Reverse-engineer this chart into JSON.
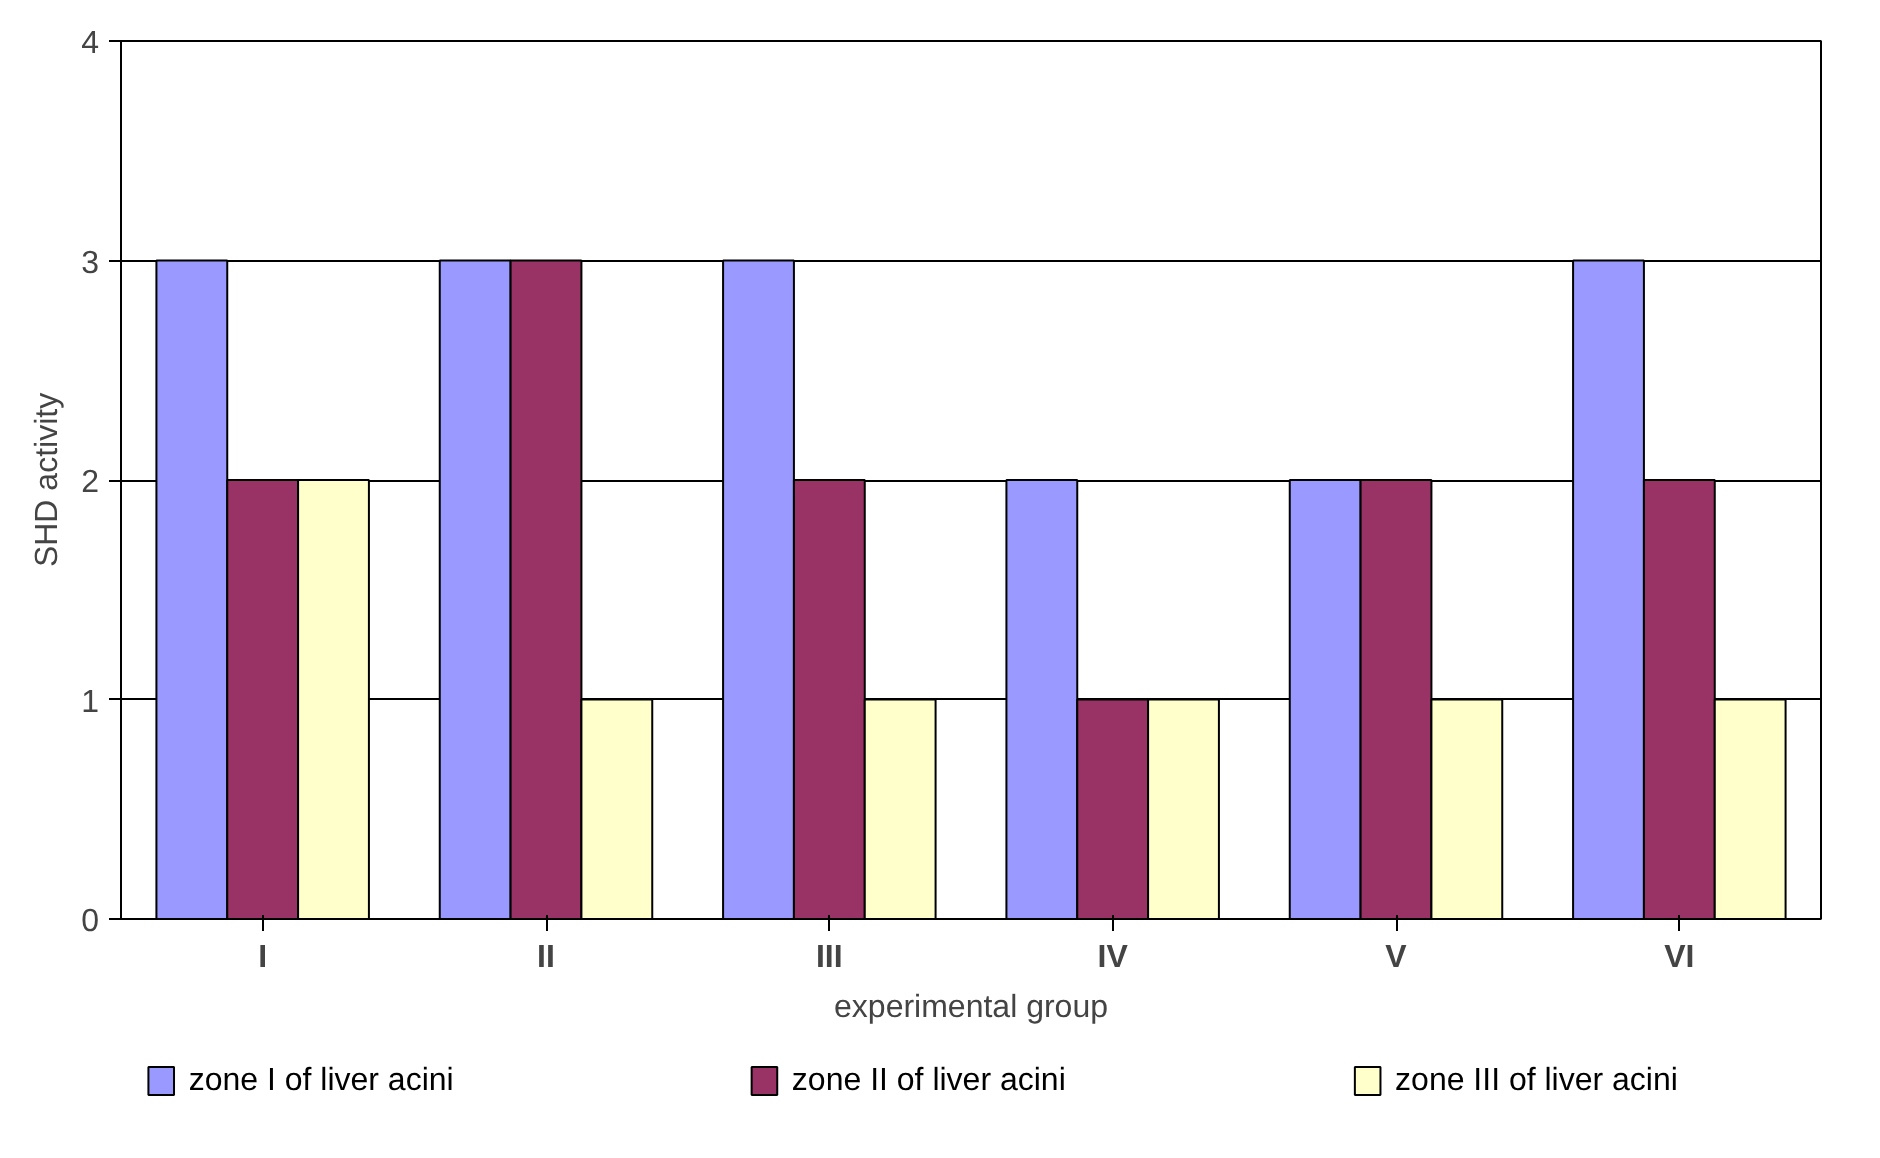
{
  "chart_data": {
    "type": "bar",
    "xlabel": "experimental group",
    "ylabel": "SHD activity",
    "categories": [
      "I",
      "II",
      "III",
      "IV",
      "V",
      "VI"
    ],
    "series": [
      {
        "name": "zone I of liver acini",
        "color": "#9999ff",
        "values": [
          3,
          3,
          3,
          2,
          2,
          3
        ]
      },
      {
        "name": "zone II of liver acini",
        "color": "#993366",
        "values": [
          2,
          3,
          2,
          1,
          2,
          2
        ]
      },
      {
        "name": "zone III of liver acini",
        "color": "#ffffcc",
        "values": [
          2,
          1,
          1,
          1,
          1,
          1
        ]
      }
    ],
    "ylim": [
      0,
      4
    ],
    "yticks": [
      0,
      1,
      2,
      3,
      4
    ],
    "grid": "y",
    "legend": "bottom"
  }
}
